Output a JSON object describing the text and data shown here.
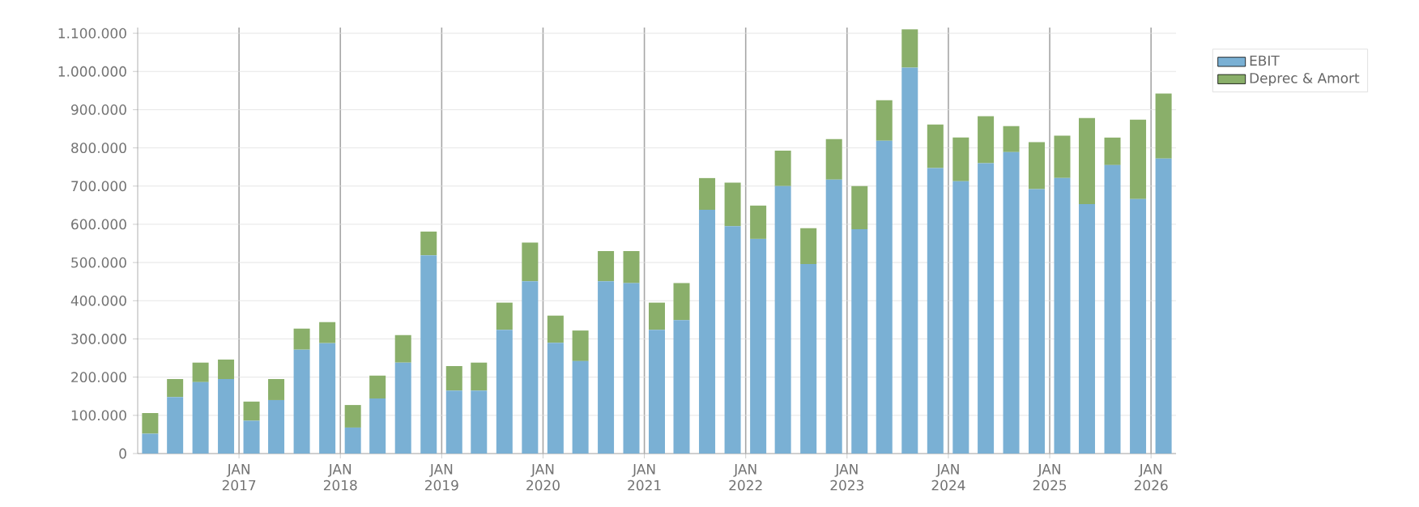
{
  "chart_data": {
    "type": "bar",
    "stacked": true,
    "x": [
      "2016-02-15",
      "2016-05-15",
      "2016-08-15",
      "2016-11-15",
      "2017-02-15",
      "2017-05-15",
      "2017-08-15",
      "2017-11-15",
      "2018-02-15",
      "2018-05-15",
      "2018-08-15",
      "2018-11-15",
      "2019-02-15",
      "2019-05-15",
      "2019-08-15",
      "2019-11-15",
      "2020-02-15",
      "2020-05-15",
      "2020-08-15",
      "2020-11-15",
      "2021-02-15",
      "2021-05-15",
      "2021-08-15",
      "2021-11-15",
      "2022-02-15",
      "2022-05-15",
      "2022-08-15",
      "2022-11-15",
      "2023-02-15",
      "2023-05-15",
      "2023-08-15",
      "2023-11-15",
      "2024-02-15",
      "2024-05-15",
      "2024-08-15",
      "2024-11-15",
      "2025-02-15",
      "2025-05-15",
      "2025-08-15",
      "2025-11-15",
      "2026-02-15"
    ],
    "series": [
      {
        "name": "EBIT",
        "color": "#7ab0d4",
        "values": [
          52000,
          148000,
          187000,
          195000,
          86000,
          140000,
          272000,
          289000,
          68000,
          144000,
          238000,
          519000,
          165000,
          165000,
          324000,
          451000,
          290000,
          242000,
          451000,
          446000,
          324000,
          349000,
          638000,
          595000,
          562000,
          700000,
          496000,
          717000,
          587000,
          819000,
          1010000,
          747000,
          713000,
          760000,
          789000,
          692000,
          721000,
          653000,
          755000,
          666000,
          772000
        ]
      },
      {
        "name": "Deprec & Amort",
        "color": "#8aaf6a",
        "values": [
          54000,
          47000,
          51000,
          51000,
          50000,
          55000,
          55000,
          55000,
          59000,
          60000,
          72000,
          62000,
          64000,
          73000,
          71000,
          101000,
          71000,
          80000,
          79000,
          84000,
          71000,
          97000,
          83000,
          114000,
          87000,
          93000,
          94000,
          106000,
          113000,
          106000,
          100000,
          114000,
          114000,
          123000,
          68000,
          123000,
          111000,
          225000,
          72000,
          208000,
          170000
        ]
      }
    ],
    "xlim": [
      "2016-01-01",
      "2026-04-01"
    ],
    "xticks": [
      {
        "value": "2017-01-01",
        "label": "JAN 2017"
      },
      {
        "value": "2018-01-01",
        "label": "JAN 2018"
      },
      {
        "value": "2019-01-01",
        "label": "JAN 2019"
      },
      {
        "value": "2020-01-01",
        "label": "JAN 2020"
      },
      {
        "value": "2021-01-01",
        "label": "JAN 2021"
      },
      {
        "value": "2022-01-01",
        "label": "JAN 2022"
      },
      {
        "value": "2023-01-01",
        "label": "JAN 2023"
      },
      {
        "value": "2024-01-01",
        "label": "JAN 2024"
      },
      {
        "value": "2025-01-01",
        "label": "JAN 2025"
      },
      {
        "value": "2026-01-01",
        "label": "JAN 2026"
      }
    ],
    "ylim": [
      0,
      1115000
    ],
    "yticks": [
      0,
      {
        "value": 100000,
        "label": "100.000"
      },
      {
        "value": 200000,
        "label": "200.000"
      },
      {
        "value": 300000,
        "label": "300.000"
      },
      {
        "value": 400000,
        "label": "400.000"
      },
      {
        "value": 500000,
        "label": "500.000"
      },
      {
        "value": 600000,
        "label": "600.000"
      },
      {
        "value": 700000,
        "label": "700.000"
      },
      {
        "value": 800000,
        "label": "800.000"
      },
      {
        "value": 900000,
        "label": "900.000"
      },
      {
        "value": 1000000,
        "label": "1.000.000"
      },
      {
        "value": 1100000,
        "label": "1.100.000"
      }
    ],
    "grid": true,
    "legend": "top right"
  }
}
